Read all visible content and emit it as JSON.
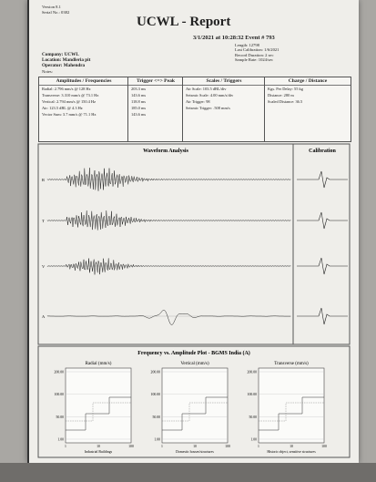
{
  "header": {
    "version": "Version 8.1",
    "serial": "Serial No.: 0382",
    "title": "UCWL - Report",
    "event": "3/1/2021 at 10:28:32 Event # 793",
    "details": [
      "Length: 12798",
      "Last Calibration: 1/6/2021",
      "Record Duration: 2 sec",
      "Sample Rate: 1024/sec"
    ]
  },
  "site": {
    "company": "Company: UCWL",
    "location": "Location: Mandleria pit",
    "operator": "Operator: Mahendra",
    "notes": "Notes:"
  },
  "boxes": [
    {
      "title": "Amplitudes / Frequencies",
      "lines": [
        "Radial: 2.796 mm/s @ 128 Hz",
        "Transverse: 3.310 mm/s @ 73.1 Hz",
        "Vertical: 2.794 mm/s @ 150.4 Hz",
        "Air: 123.5 dBL @ 4.3 Hz",
        "Vector Sum: 3.7 mm/s @ 71.1 Hz"
      ]
    },
    {
      "title": "Trigger <=> Peak",
      "lines": [
        "203.3 ms",
        "143.6 ms",
        "118.8 ms",
        "185.0 ms",
        "143.6 ms"
      ]
    },
    {
      "title": "Scales / Triggers",
      "lines": [
        "Air Scale: 103.5 dBL/div",
        "Seismic Scale: 4.00 mm/s/div",
        "Air Trigger: 98",
        "Seismic Trigger: .508 mm/s"
      ]
    },
    {
      "title": "Charge / Distance",
      "lines": [
        "Kgs. Per Delay: 55 kg",
        "Distance: 280 m",
        "Scaled Distance: 36.5"
      ]
    }
  ],
  "waveform": {
    "title": "Waveform Analysis",
    "calibration": "Calibration",
    "channels": [
      "R",
      "T",
      "V",
      "A"
    ]
  },
  "frequency": {
    "title": "Frequency vs. Amplitude Plot - BGMS India (A)",
    "plots": [
      {
        "title": "Radial (mm/s)",
        "yticks": [
          "200.00",
          "100.00",
          "50.00",
          "1.00"
        ],
        "xticks": [
          "1",
          "10",
          "100"
        ],
        "caption": "Industrial Buildings"
      },
      {
        "title": "Vertical (mm/s)",
        "yticks": [
          "200.00",
          "100.00",
          "50.00",
          "1.00"
        ],
        "xticks": [
          "1",
          "10",
          "100"
        ],
        "caption": "Domestic houses/structures"
      },
      {
        "title": "Transverse (mm/s)",
        "yticks": [
          "200.00",
          "100.00",
          "50.00",
          "1.00"
        ],
        "xticks": [
          "1",
          "10",
          "100"
        ],
        "caption": "Historic object, sensitive structures"
      }
    ]
  }
}
